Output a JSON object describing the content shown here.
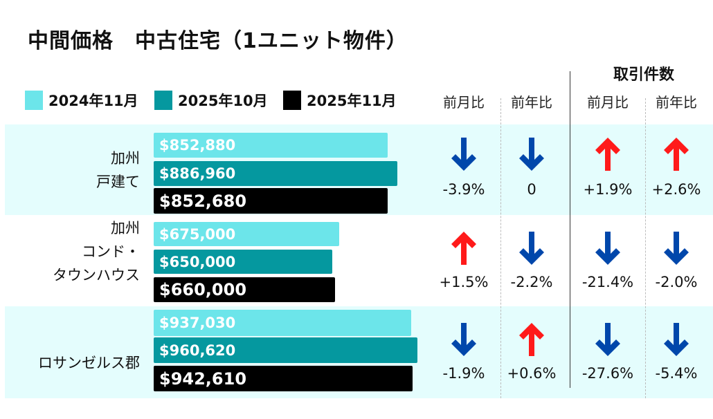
{
  "title": "中間価格　中古住宅（1ユニット物件）",
  "colors": {
    "y2024_11": "#6ce5ea",
    "y2025_10": "#05989f",
    "y2025_11": "#000000",
    "up": "#ff1a1a",
    "down": "#0047ab",
    "row_bg": "#e4fdfd"
  },
  "chart_data": {
    "type": "bar",
    "title": "中間価格　中古住宅（1ユニット物件）",
    "legend": [
      "2024年11月",
      "2025年10月",
      "2025年11月"
    ],
    "categories": [
      "加州 戸建て",
      "加州 コンド・タウンハウス",
      "ロサンゼルス郡"
    ],
    "series": [
      {
        "name": "2024年11月",
        "values": [
          852880,
          675000,
          937030
        ],
        "labels": [
          "$852,880",
          "$675,000",
          "$937,030"
        ]
      },
      {
        "name": "2025年10月",
        "values": [
          886960,
          650000,
          960620
        ],
        "labels": [
          "$886,960",
          "$650,000",
          "$960,620"
        ]
      },
      {
        "name": "2025年11月",
        "values": [
          852680,
          660000,
          942610
        ],
        "labels": [
          "$852,680",
          "$660,000",
          "$942,610"
        ]
      }
    ]
  },
  "rows": [
    {
      "label_lines": [
        "加州",
        "戸建て"
      ],
      "changes": [
        {
          "value": "-3.9%",
          "dir": "down"
        },
        {
          "value": "0",
          "dir": "down"
        },
        {
          "value": "+1.9%",
          "dir": "up"
        },
        {
          "value": "+2.6%",
          "dir": "up"
        }
      ]
    },
    {
      "label_lines": [
        "加州",
        "コンド・",
        "タウンハウス"
      ],
      "changes": [
        {
          "value": "+1.5%",
          "dir": "up"
        },
        {
          "value": "-2.2%",
          "dir": "down"
        },
        {
          "value": "-21.4%",
          "dir": "down"
        },
        {
          "value": "-2.0%",
          "dir": "down"
        }
      ]
    },
    {
      "label_lines": [
        "ロサンゼルス郡"
      ],
      "changes": [
        {
          "value": "-1.9%",
          "dir": "down"
        },
        {
          "value": "+0.6%",
          "dir": "up"
        },
        {
          "value": "-27.6%",
          "dir": "down"
        },
        {
          "value": "-5.4%",
          "dir": "down"
        }
      ]
    }
  ],
  "headers": {
    "price_mom": "前月比",
    "price_yoy": "前年比",
    "sales_group": "取引件数",
    "sales_mom": "前月比",
    "sales_yoy": "前年比"
  }
}
